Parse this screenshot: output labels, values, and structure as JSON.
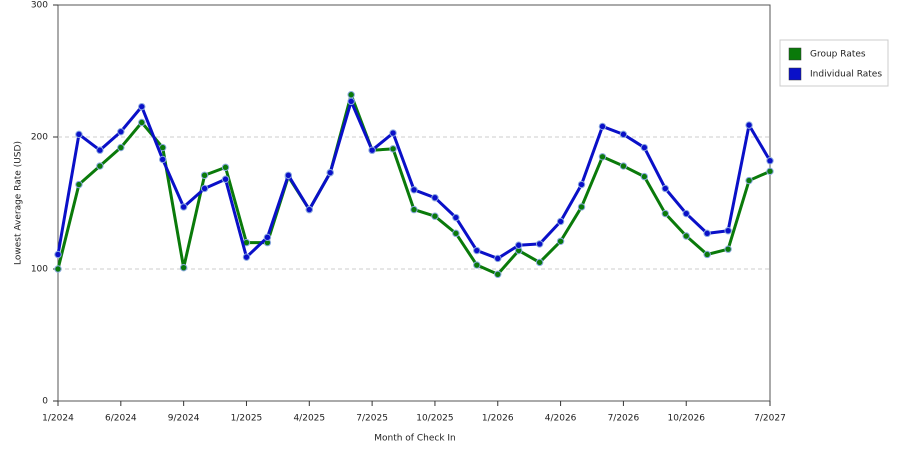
{
  "chart_data": {
    "type": "line",
    "x_label": "Month of Check In",
    "y_label": "Lowest Average Rate (USD)",
    "categories": [
      "1/2024",
      null,
      null,
      "6/2024",
      null,
      null,
      "9/2024",
      null,
      null,
      "1/2025",
      null,
      null,
      "4/2025",
      null,
      null,
      "7/2025",
      null,
      null,
      "10/2025",
      null,
      null,
      "1/2026",
      null,
      null,
      "4/2026",
      null,
      null,
      "7/2026",
      null,
      null,
      "10/2026",
      null,
      null,
      null,
      "7/2027"
    ],
    "series": [
      {
        "name": "Group Rates",
        "color": "#0a7a0a",
        "values": [
          100,
          164,
          178,
          192,
          211,
          192,
          101,
          171,
          177,
          120,
          120,
          170,
          145,
          173,
          232,
          190,
          191,
          145,
          140,
          127,
          103,
          96,
          114,
          105,
          121,
          147,
          185,
          178,
          170,
          142,
          125,
          111,
          115,
          167,
          174
        ]
      },
      {
        "name": "Individual Rates",
        "color": "#0a10c8",
        "values": [
          111,
          202,
          190,
          204,
          223,
          183,
          147,
          161,
          168,
          109,
          124,
          171,
          145,
          173,
          227,
          190,
          203,
          160,
          154,
          139,
          114,
          108,
          118,
          119,
          136,
          164,
          208,
          202,
          192,
          161,
          142,
          127,
          129,
          209,
          182
        ]
      }
    ],
    "ylim": [
      0,
      300
    ],
    "yticks": [
      0,
      100,
      200,
      300
    ],
    "grid": true,
    "legend": "right"
  }
}
